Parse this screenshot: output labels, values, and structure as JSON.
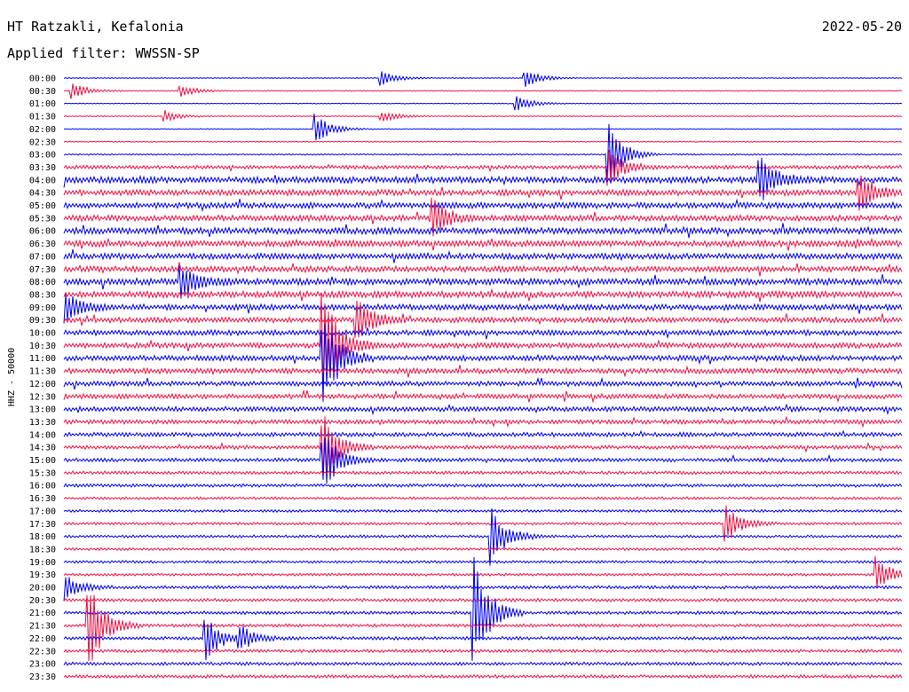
{
  "header": {
    "station": "HT Ratzakli, Kefalonia",
    "date": "2022-05-20",
    "filter": "Applied filter: WWSSN-SP"
  },
  "chart_data": {
    "type": "line",
    "title": "HT Ratzakli, Kefalonia",
    "ylabel": "HHZ - 50000",
    "colors": [
      "#0000ee",
      "#ee1144"
    ],
    "rows": [
      "00:00",
      "00:30",
      "01:00",
      "01:30",
      "02:00",
      "02:30",
      "03:00",
      "03:30",
      "04:00",
      "04:30",
      "05:00",
      "05:30",
      "06:00",
      "06:30",
      "07:00",
      "07:30",
      "08:00",
      "08:30",
      "09:00",
      "09:30",
      "10:00",
      "10:30",
      "11:00",
      "11:30",
      "12:00",
      "12:30",
      "13:00",
      "13:30",
      "14:00",
      "14:30",
      "15:00",
      "15:30",
      "16:00",
      "16:30",
      "17:00",
      "17:30",
      "18:00",
      "18:30",
      "19:00",
      "19:30",
      "20:00",
      "20:30",
      "21:00",
      "21:30",
      "22:00",
      "22:30",
      "23:00",
      "23:30"
    ],
    "noise_level": [
      0.08,
      0.08,
      0.08,
      0.08,
      0.08,
      0.08,
      0.15,
      0.35,
      0.6,
      0.55,
      0.55,
      0.55,
      0.6,
      0.6,
      0.55,
      0.55,
      0.6,
      0.6,
      0.55,
      0.5,
      0.5,
      0.5,
      0.5,
      0.5,
      0.45,
      0.45,
      0.45,
      0.4,
      0.4,
      0.35,
      0.35,
      0.3,
      0.3,
      0.25,
      0.25,
      0.25,
      0.25,
      0.25,
      0.25,
      0.25,
      0.3,
      0.3,
      0.3,
      0.3,
      0.3,
      0.3,
      0.3,
      0.3
    ],
    "events": [
      {
        "row": 0,
        "t": 0.55,
        "amp": 0.8
      },
      {
        "row": 0,
        "t": 0.38,
        "amp": 0.6
      },
      {
        "row": 1,
        "t": 0.01,
        "amp": 0.7
      },
      {
        "row": 1,
        "t": 0.14,
        "amp": 0.5
      },
      {
        "row": 2,
        "t": 0.54,
        "amp": 0.7
      },
      {
        "row": 3,
        "t": 0.12,
        "amp": 0.5
      },
      {
        "row": 3,
        "t": 0.38,
        "amp": 0.5
      },
      {
        "row": 4,
        "t": 0.3,
        "amp": 1.3
      },
      {
        "row": 6,
        "t": 0.65,
        "amp": 2.5
      },
      {
        "row": 7,
        "t": 0.65,
        "amp": 1.5
      },
      {
        "row": 8,
        "t": 0.83,
        "amp": 2.0
      },
      {
        "row": 9,
        "t": 0.95,
        "amp": 1.5
      },
      {
        "row": 11,
        "t": 0.44,
        "amp": 1.6
      },
      {
        "row": 16,
        "t": 0.14,
        "amp": 1.5
      },
      {
        "row": 18,
        "t": 0.0,
        "amp": 1.4
      },
      {
        "row": 19,
        "t": 0.35,
        "amp": 1.8
      },
      {
        "row": 21,
        "t": 0.31,
        "amp": 5.0
      },
      {
        "row": 22,
        "t": 0.31,
        "amp": 4.0
      },
      {
        "row": 29,
        "t": 0.31,
        "amp": 3.0
      },
      {
        "row": 30,
        "t": 0.31,
        "amp": 2.5
      },
      {
        "row": 35,
        "t": 0.79,
        "amp": 1.5
      },
      {
        "row": 36,
        "t": 0.51,
        "amp": 2.5
      },
      {
        "row": 39,
        "t": 0.97,
        "amp": 1.5
      },
      {
        "row": 40,
        "t": 0.0,
        "amp": 1.2
      },
      {
        "row": 42,
        "t": 0.49,
        "amp": 4.5
      },
      {
        "row": 43,
        "t": 0.03,
        "amp": 4.0
      },
      {
        "row": 44,
        "t": 0.17,
        "amp": 1.8
      },
      {
        "row": 44,
        "t": 0.21,
        "amp": 1.0
      }
    ]
  }
}
